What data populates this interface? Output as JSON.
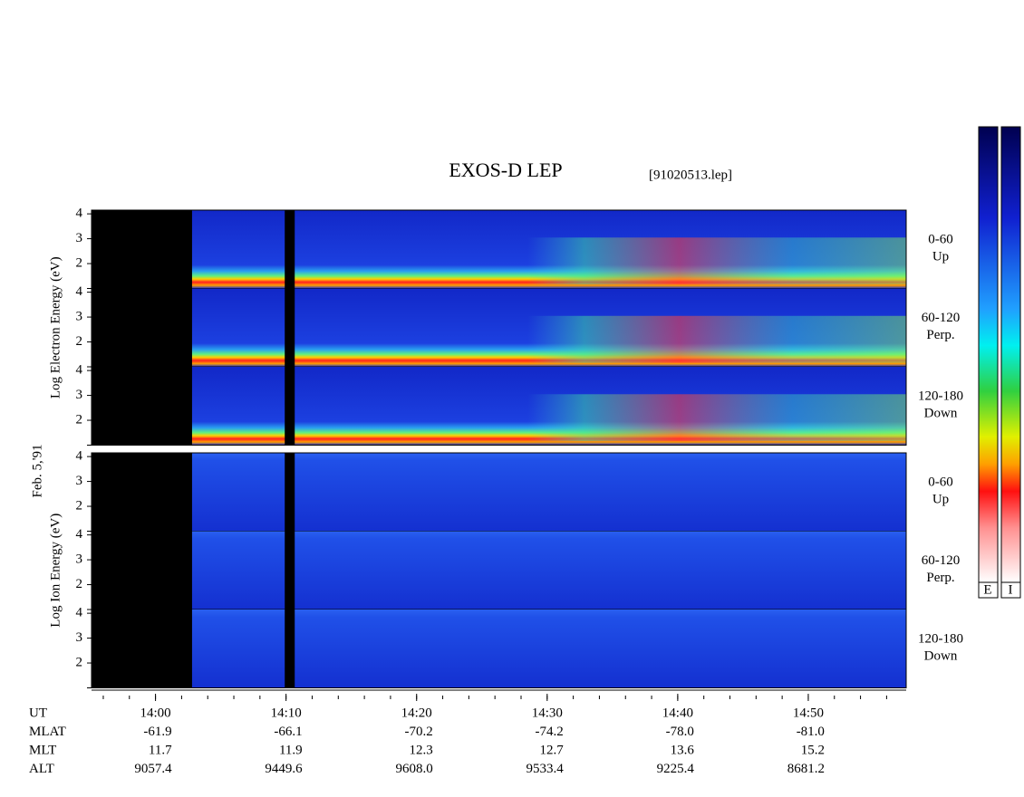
{
  "chart_data": {
    "type": "spectrogram",
    "title": "EXOS-D LEP",
    "subtitle": "[91020513.lep]",
    "date_label": "Feb. 5,'91",
    "groups": [
      {
        "ylabel": "Log  Electron  Energy (eV)",
        "panels": [
          {
            "angle": "0-60",
            "direction": "Up"
          },
          {
            "angle": "60-120",
            "direction": "Perp."
          },
          {
            "angle": "120-180",
            "direction": "Down"
          }
        ]
      },
      {
        "ylabel": "Log  Ion  Energy (eV)",
        "panels": [
          {
            "angle": "0-60",
            "direction": "Up"
          },
          {
            "angle": "60-120",
            "direction": "Perp."
          },
          {
            "angle": "120-180",
            "direction": "Down"
          }
        ]
      }
    ],
    "ylim": [
      1,
      4.15
    ],
    "yticks": [
      2,
      3,
      4
    ],
    "xlim": [
      835.1,
      897.5
    ],
    "xticks": [
      {
        "value": 840,
        "label": "14:00"
      },
      {
        "value": 850,
        "label": "14:10"
      },
      {
        "value": 860,
        "label": "14:20"
      },
      {
        "value": 870,
        "label": "14:30"
      },
      {
        "value": 880,
        "label": "14:40"
      },
      {
        "value": 890,
        "label": "14:50"
      }
    ],
    "ephemeris": [
      {
        "name": "UT"
      },
      {
        "name": "MLAT",
        "values": [
          "-61.9",
          "-66.1",
          "-70.2",
          "-74.2",
          "-78.0",
          "-81.0"
        ]
      },
      {
        "name": "MLT",
        "values": [
          "11.7",
          "11.9",
          "12.3",
          "12.7",
          "13.6",
          "15.2"
        ]
      },
      {
        "name": "ALT",
        "values": [
          "9057.4",
          "9449.6",
          "9608.0",
          "9533.4",
          "9225.4",
          "8681.2"
        ]
      }
    ],
    "colorbar_labels": [
      "E",
      "I"
    ]
  }
}
